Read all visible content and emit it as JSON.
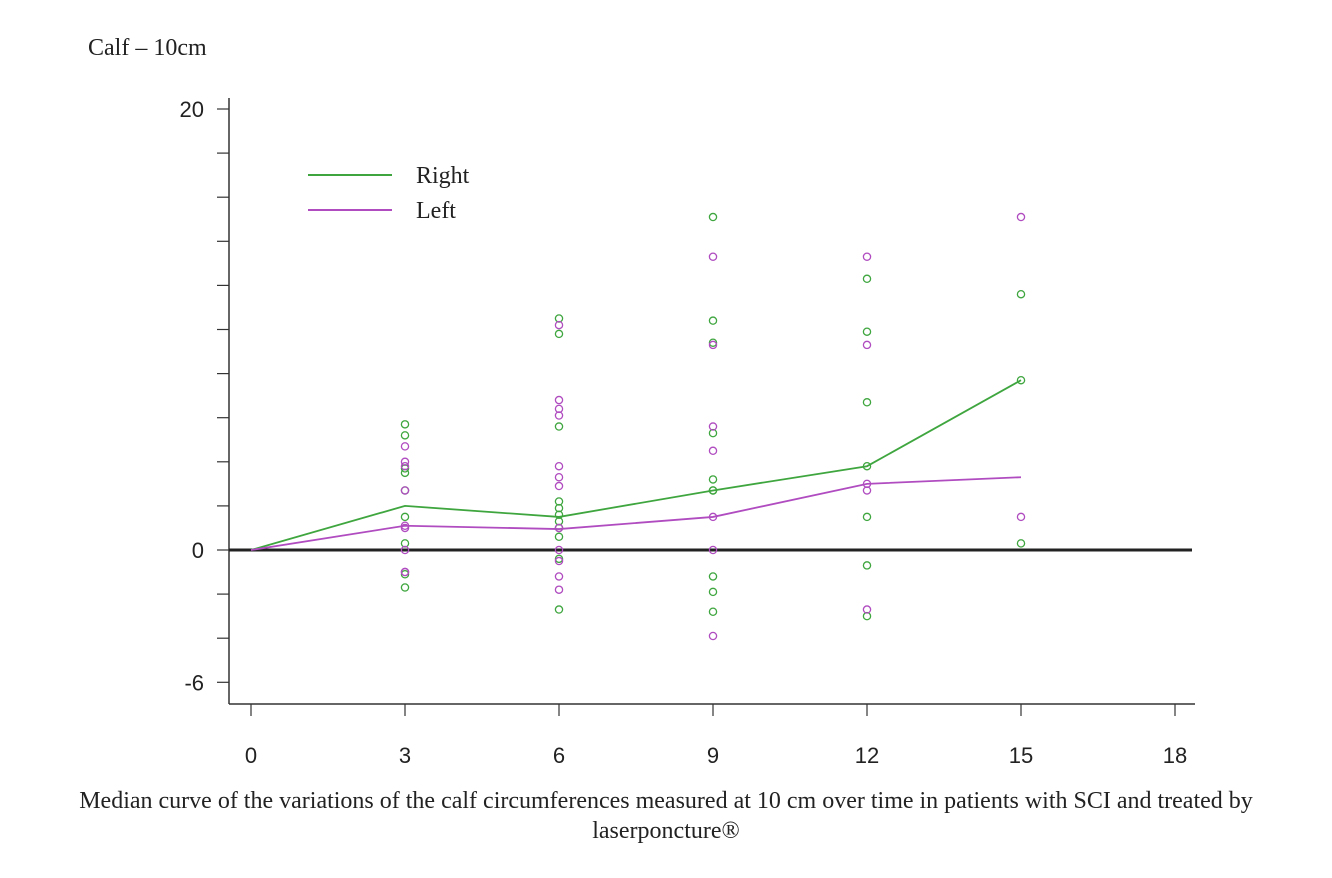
{
  "chart_data": {
    "type": "scatter",
    "title": "Calf – 10cm",
    "caption": "Median curve of the variations of the calf circumferences measured at 10 cm over time in patients with SCI and treated by laserponcture®",
    "xlabel": "",
    "ylabel": "",
    "xlim": [
      -0.5,
      18.2
    ],
    "ylim": [
      -7,
      20.5
    ],
    "x_ticks": [
      0,
      3,
      6,
      9,
      12,
      15,
      18
    ],
    "y_tick_labels": [
      20,
      0,
      -6
    ],
    "y_minor_ticks": [
      20,
      18,
      16,
      14,
      12,
      10,
      8,
      6,
      4,
      2,
      0,
      -2,
      -4,
      -6
    ],
    "zero_line": true,
    "grid": false,
    "legend_position": "top-left",
    "series": [
      {
        "name": "Right",
        "color": "#3fa63f",
        "median": {
          "x": [
            0,
            3,
            6,
            9,
            12,
            15
          ],
          "y": [
            0,
            2.0,
            1.5,
            2.7,
            3.8,
            7.7
          ]
        },
        "points": {
          "x": [
            3,
            3,
            3,
            3,
            3,
            3,
            3,
            3,
            3,
            6,
            6,
            6,
            6,
            6,
            6,
            6,
            6,
            6,
            6,
            6,
            9,
            9,
            9,
            9,
            9,
            9,
            9,
            9,
            9,
            9,
            12,
            12,
            12,
            12,
            12,
            12,
            12,
            15,
            15,
            15
          ],
          "y": [
            5.7,
            5.2,
            3.7,
            3.5,
            1.5,
            0.3,
            -1.1,
            -1.7,
            2.7,
            10.5,
            9.8,
            5.6,
            2.2,
            1.9,
            1.6,
            1.3,
            1.0,
            0.6,
            -0.4,
            -2.7,
            15.1,
            10.4,
            9.4,
            5.3,
            3.2,
            2.7,
            -1.2,
            -1.9,
            -2.8,
            2.7,
            12.3,
            9.9,
            6.7,
            3.8,
            1.5,
            -0.7,
            -3.0,
            11.6,
            7.7,
            0.3
          ]
        }
      },
      {
        "name": "Left",
        "color": "#b04cc0",
        "median": {
          "x": [
            0,
            3,
            6,
            9,
            12,
            15
          ],
          "y": [
            0,
            1.1,
            0.95,
            1.5,
            3.0,
            3.3
          ]
        },
        "points": {
          "x": [
            3,
            3,
            3,
            3,
            3,
            3,
            3,
            3,
            3,
            6,
            6,
            6,
            6,
            6,
            6,
            6,
            6,
            6,
            6,
            6,
            6,
            9,
            9,
            9,
            9,
            9,
            9,
            9,
            12,
            12,
            12,
            12,
            12,
            15,
            15
          ],
          "y": [
            4.7,
            4.0,
            3.8,
            2.7,
            1.1,
            1.0,
            -1.0,
            -1.0,
            0.0,
            10.2,
            6.8,
            6.4,
            6.1,
            3.8,
            3.3,
            2.9,
            1.0,
            0.0,
            -0.5,
            -1.2,
            -1.8,
            13.3,
            9.3,
            5.6,
            4.5,
            1.5,
            0.0,
            -3.9,
            13.3,
            9.3,
            3.0,
            2.7,
            -2.7,
            15.1,
            1.5
          ]
        }
      }
    ]
  }
}
